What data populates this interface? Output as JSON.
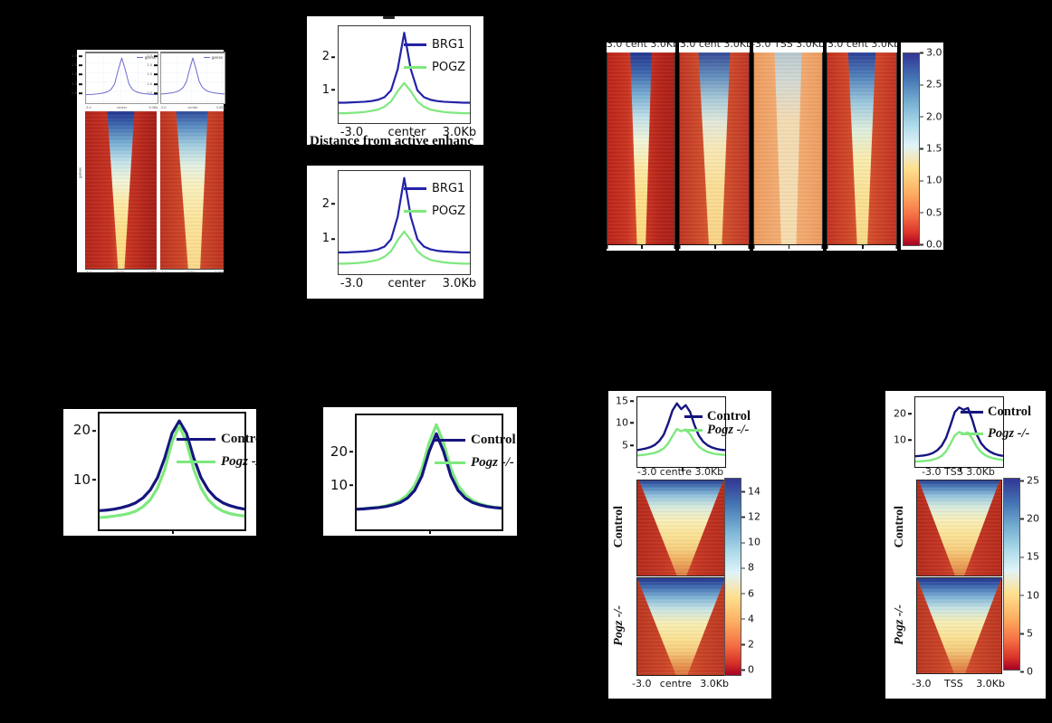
{
  "colors": {
    "background": "#000000",
    "panel_bg": "#ffffff",
    "line_blue": "#2323a8",
    "line_blue_dark": "#15157e",
    "line_green": "#7ee87e",
    "mini_line": "#6a6ad0",
    "cmap_high": "#313695",
    "cmap_mid": "#fee090",
    "cmap_low": "#a50026"
  },
  "panel_a": {
    "xticks": [
      "-3.0",
      "center",
      "3.0Kb"
    ],
    "side_label": "genes"
  },
  "panel_b1": {
    "caption": "Distance from active enhanc"
  },
  "panel_c": {
    "col_labels": [
      "-3.0  cent 3.0Kb",
      "-3.0  cent 3.0Kb",
      "-3.0  TSS 3.0Kb",
      "-3.0  cent 3.0Kb"
    ],
    "colorbar_labels": [
      "3.0",
      "2.5",
      "2.0",
      "1.5",
      "1.0",
      "0.5",
      "0.0"
    ]
  },
  "panel_e": {
    "row_labels": [
      "Control",
      "Pogz -/-"
    ],
    "xticks": [
      "-3.0",
      "centre",
      "3.0Kb"
    ],
    "xaxis_cut": "-3.0   centre 3.0Kb",
    "colorbar_labels": [
      "14",
      "12",
      "10",
      "8",
      "6",
      "4",
      "2",
      "0"
    ]
  },
  "panel_f": {
    "row_labels": [
      "Control",
      "Pogz -/-"
    ],
    "xticks": [
      "-3.0",
      "TSS",
      "3.0Kb"
    ],
    "xaxis_cut": "-3.0    TSS  3.0Kb",
    "colorbar_labels": [
      "25",
      "20",
      "15",
      "10",
      "5",
      "0"
    ]
  },
  "chart_data": [
    {
      "type": "line",
      "title": "",
      "xlabel": "",
      "ylabel": "",
      "xlim": [
        -3,
        3
      ],
      "ylim": [
        0,
        2.7
      ],
      "xticks": [
        {
          "f": 0.03,
          "label": "-3.0"
        },
        {
          "f": 0.5,
          "label": "center"
        },
        {
          "f": 0.94,
          "label": "3.0Kb"
        }
      ],
      "yticks": [
        {
          "v": 2.5,
          "label": "2.5"
        },
        {
          "v": 2.0,
          "label": "2.0"
        },
        {
          "v": 1.5,
          "label": "1.5"
        },
        {
          "v": 1.0,
          "label": "1.0"
        },
        {
          "v": 0.5,
          "label": "0.5"
        }
      ],
      "series": [
        {
          "name": "genes",
          "color": "#6a6ad0",
          "values": [
            0.46,
            0.47,
            0.48,
            0.5,
            0.52,
            0.56,
            0.62,
            0.74,
            1.05,
            1.8,
            2.45,
            1.8,
            1.05,
            0.74,
            0.62,
            0.56,
            0.52,
            0.5,
            0.48,
            0.47,
            0.46
          ]
        }
      ]
    },
    {
      "type": "line",
      "title": "",
      "xlabel": "",
      "ylabel": "",
      "xlim": [
        -3,
        3
      ],
      "ylim": [
        0,
        2.7
      ],
      "xticks": [
        {
          "f": 0.03,
          "label": "-3.0"
        },
        {
          "f": 0.5,
          "label": "center"
        },
        {
          "f": 0.94,
          "label": "3.0Kb"
        }
      ],
      "yticks": [
        {
          "v": 2.5,
          "label": "2.5"
        },
        {
          "v": 2.0,
          "label": "2.0"
        },
        {
          "v": 1.5,
          "label": "1.5"
        },
        {
          "v": 1.0,
          "label": "1.0"
        },
        {
          "v": 0.5,
          "label": "0.5"
        }
      ],
      "series": [
        {
          "name": "genes",
          "color": "#6a6ad0",
          "values": [
            0.5,
            0.51,
            0.53,
            0.55,
            0.58,
            0.63,
            0.71,
            0.86,
            1.18,
            1.85,
            2.45,
            1.85,
            1.18,
            0.86,
            0.71,
            0.63,
            0.58,
            0.55,
            0.53,
            0.51,
            0.5
          ]
        }
      ]
    },
    {
      "type": "line",
      "title": "",
      "xlabel": "Distance from active enhanc",
      "ylabel": "",
      "xlim": [
        -3,
        3
      ],
      "ylim": [
        0,
        2.95
      ],
      "xticks": [
        {
          "f": 0.1,
          "label": "-3.0"
        },
        {
          "f": 0.52,
          "label": "center"
        },
        {
          "f": 0.92,
          "label": "3.0Kb"
        }
      ],
      "yticks": [
        {
          "v": 1,
          "label": "1"
        },
        {
          "v": 2,
          "label": "2"
        }
      ],
      "series": [
        {
          "name": "BRG1",
          "color": "#2323a8",
          "values": [
            0.62,
            0.62,
            0.63,
            0.64,
            0.65,
            0.67,
            0.71,
            0.79,
            1.0,
            1.64,
            2.75,
            1.64,
            1.0,
            0.79,
            0.71,
            0.67,
            0.65,
            0.64,
            0.63,
            0.62,
            0.62
          ]
        },
        {
          "name": "POGZ",
          "color": "#7ee87e",
          "values": [
            0.3,
            0.3,
            0.31,
            0.32,
            0.34,
            0.37,
            0.41,
            0.5,
            0.66,
            0.97,
            1.22,
            0.97,
            0.66,
            0.5,
            0.41,
            0.37,
            0.34,
            0.32,
            0.31,
            0.3,
            0.3
          ]
        }
      ]
    },
    {
      "type": "line",
      "title": "",
      "xlabel": "",
      "ylabel": "",
      "xlim": [
        -3,
        3
      ],
      "ylim": [
        0,
        2.95
      ],
      "xticks": [
        {
          "f": 0.1,
          "label": "-3.0"
        },
        {
          "f": 0.52,
          "label": "center"
        },
        {
          "f": 0.92,
          "label": "3.0Kb"
        }
      ],
      "yticks": [
        {
          "v": 1,
          "label": "1"
        },
        {
          "v": 2,
          "label": "2"
        }
      ],
      "series": [
        {
          "name": "BRG1",
          "color": "#2323a8",
          "values": [
            0.62,
            0.62,
            0.63,
            0.64,
            0.65,
            0.67,
            0.71,
            0.79,
            1.0,
            1.64,
            2.75,
            1.64,
            1.0,
            0.79,
            0.71,
            0.67,
            0.65,
            0.64,
            0.63,
            0.62,
            0.62
          ]
        },
        {
          "name": "POGZ",
          "color": "#7ee87e",
          "values": [
            0.3,
            0.3,
            0.31,
            0.32,
            0.34,
            0.37,
            0.41,
            0.5,
            0.66,
            0.97,
            1.22,
            0.97,
            0.66,
            0.5,
            0.41,
            0.37,
            0.34,
            0.32,
            0.31,
            0.3,
            0.3
          ]
        }
      ]
    },
    {
      "type": "line",
      "title": "",
      "xlabel": "",
      "ylabel": "",
      "xlim": [
        -3,
        3
      ],
      "ylim": [
        0,
        23.5
      ],
      "xticks": [],
      "yticks": [
        {
          "v": 10,
          "label": "10"
        },
        {
          "v": 20,
          "label": "20"
        }
      ],
      "series": [
        {
          "name": "Control",
          "color": "#15157e",
          "values": [
            3.8,
            3.9,
            4.1,
            4.4,
            4.8,
            5.4,
            6.4,
            8.0,
            10.5,
            14.5,
            19.5,
            22.0,
            19.5,
            14.5,
            10.5,
            8.0,
            6.4,
            5.4,
            4.8,
            4.4,
            4.1
          ]
        },
        {
          "name": "Pogz -/-",
          "color": "#7ee87e",
          "values": [
            2.4,
            2.5,
            2.7,
            2.9,
            3.2,
            3.7,
            4.6,
            6.0,
            8.4,
            12.2,
            17.7,
            21.0,
            17.7,
            12.2,
            8.4,
            6.0,
            4.6,
            3.7,
            3.2,
            2.9,
            2.7
          ]
        }
      ]
    },
    {
      "type": "line",
      "title": "",
      "xlabel": "",
      "ylabel": "",
      "xlim": [
        -3,
        3
      ],
      "ylim": [
        -3,
        31
      ],
      "xticks": [],
      "yticks": [
        {
          "v": 10,
          "label": "10"
        },
        {
          "v": 20,
          "label": "20"
        }
      ],
      "series": [
        {
          "name": "Pogz -/-",
          "color": "#7ee87e",
          "values": [
            3.0,
            3.2,
            3.4,
            3.6,
            4.0,
            4.6,
            5.6,
            7.3,
            10.1,
            15.1,
            22.8,
            28.2,
            22.8,
            15.1,
            10.1,
            7.3,
            5.6,
            4.6,
            4.0,
            3.6,
            3.4
          ]
        },
        {
          "name": "Control",
          "color": "#15157e",
          "values": [
            3.0,
            3.1,
            3.3,
            3.5,
            3.8,
            4.3,
            5.0,
            6.3,
            8.6,
            12.9,
            20.2,
            25.5,
            20.2,
            12.9,
            8.6,
            6.3,
            5.0,
            4.3,
            3.8,
            3.5,
            3.3
          ]
        }
      ]
    },
    {
      "type": "line",
      "title": "",
      "xlabel": "-3.0 centre 3.0Kb",
      "ylabel": "",
      "xlim": [
        -3,
        3
      ],
      "ylim": [
        0,
        15.8
      ],
      "xticks": [],
      "yticks": [
        {
          "v": 5,
          "label": "5"
        },
        {
          "v": 10,
          "label": "10"
        },
        {
          "v": 15,
          "label": "15"
        }
      ],
      "series": [
        {
          "name": "Control",
          "color": "#15157e",
          "values": [
            3.8,
            4.0,
            4.2,
            4.5,
            5.0,
            5.9,
            7.3,
            9.8,
            12.8,
            14.4,
            13.1,
            14.0,
            12.5,
            9.5,
            7.1,
            5.7,
            4.9,
            4.4,
            4.1,
            3.9,
            3.8
          ]
        },
        {
          "name": "Pogz -/-",
          "color": "#7ee87e",
          "values": [
            2.6,
            2.7,
            2.8,
            3.0,
            3.2,
            3.6,
            4.2,
            5.3,
            7.0,
            8.6,
            8.1,
            8.5,
            7.4,
            5.8,
            4.6,
            3.9,
            3.4,
            3.1,
            2.9,
            2.8,
            2.7
          ]
        }
      ]
    },
    {
      "type": "line",
      "title": "",
      "xlabel": "-3.0 TSS 3.0Kb",
      "ylabel": "",
      "xlim": [
        -3,
        3
      ],
      "ylim": [
        0,
        26
      ],
      "xticks": [],
      "yticks": [
        {
          "v": 10,
          "label": "10"
        },
        {
          "v": 20,
          "label": "20"
        }
      ],
      "series": [
        {
          "name": "Control",
          "color": "#15157e",
          "values": [
            4.0,
            4.1,
            4.3,
            4.6,
            5.2,
            6.2,
            7.9,
            10.8,
            15.5,
            20.5,
            22.2,
            21.3,
            22.0,
            17.5,
            12.0,
            8.8,
            6.9,
            5.7,
            4.9,
            4.4,
            4.1
          ]
        },
        {
          "name": "Pogz -/-",
          "color": "#7ee87e",
          "values": [
            2.0,
            2.1,
            2.2,
            2.4,
            2.7,
            3.2,
            4.1,
            5.8,
            8.6,
            11.8,
            13.0,
            12.4,
            12.8,
            10.5,
            7.5,
            5.5,
            4.3,
            3.6,
            3.1,
            2.8,
            2.6
          ]
        }
      ]
    }
  ]
}
